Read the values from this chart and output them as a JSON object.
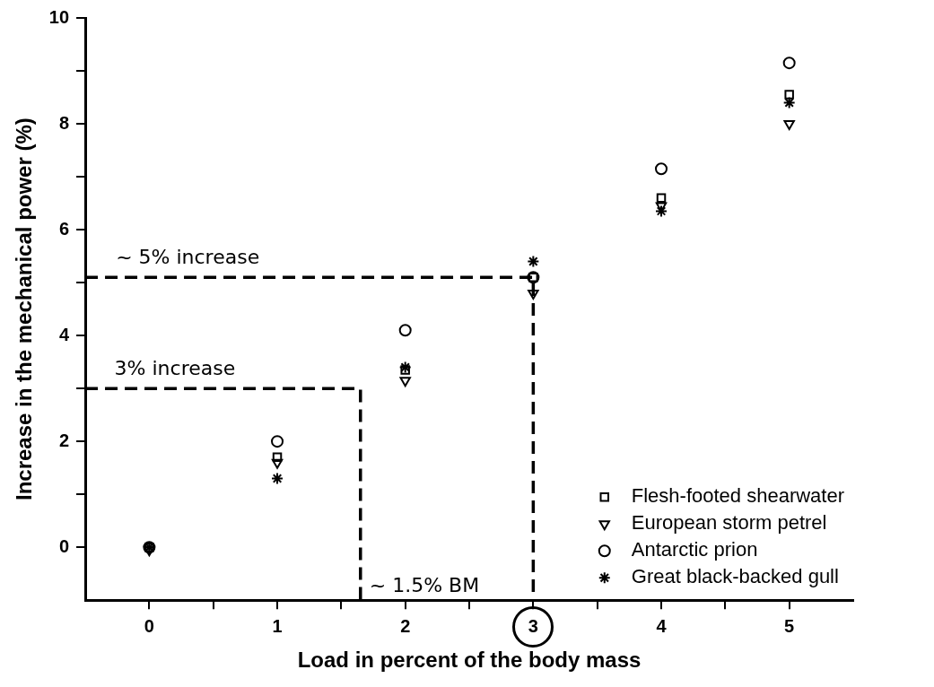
{
  "chart_data": {
    "type": "scatter",
    "xlabel": "Load in percent of the body mass",
    "ylabel": "Increase in the mechanical power (%)",
    "x": [
      0,
      1,
      2,
      3,
      4,
      5
    ],
    "xlim": [
      -0.5,
      5.5
    ],
    "xticks": [
      0,
      {
        "value": 0.5,
        "label": null
      },
      1,
      {
        "value": 1.5,
        "label": null
      },
      2,
      {
        "value": 2.5,
        "label": null
      },
      3,
      {
        "value": 3.5,
        "label": null
      },
      4,
      {
        "value": 4.5,
        "label": null
      },
      5
    ],
    "ylim": [
      -1,
      10
    ],
    "yticks": [
      0,
      {
        "value": 1,
        "label": null
      },
      2,
      {
        "value": 3,
        "label": null
      },
      4,
      {
        "value": 5,
        "label": null
      },
      6,
      {
        "value": 7,
        "label": null
      },
      8,
      {
        "value": 9,
        "label": null
      },
      10
    ],
    "grid": false,
    "legend": "bottom right",
    "series": [
      {
        "name": "Flesh-footed shearwater",
        "color": "#000000",
        "marker": "square",
        "values": [
          0,
          1.7,
          3.35,
          5.1,
          6.6,
          8.55
        ]
      },
      {
        "name": "European storm petrel",
        "color": "#000000",
        "marker": "triangle",
        "values": [
          -0.05,
          1.6,
          3.15,
          4.8,
          6.45,
          8.0
        ]
      },
      {
        "name": "Antarctic prion",
        "color": "#000000",
        "marker": "circle",
        "values": [
          0,
          2.0,
          4.1,
          5.1,
          7.15,
          9.15
        ]
      },
      {
        "name": "Great black-backed gull",
        "color": "#000000",
        "marker": "cross",
        "values": [
          0,
          1.3,
          3.4,
          5.4,
          6.35,
          8.4
        ]
      },
      {
        "type": "line",
        "color": "#000000",
        "marker": "none",
        "line_style": "dashed",
        "x": [
          -0.5,
          3,
          3
        ],
        "values": [
          5.1,
          5.1,
          -1
        ]
      },
      {
        "type": "line",
        "color": "#000000",
        "marker": "none",
        "line_style": "dashed",
        "x": [
          -0.5,
          1.65,
          1.65
        ],
        "values": [
          3,
          3,
          -1
        ]
      }
    ],
    "annotations": [
      {
        "text": "~ 5% increase",
        "x": 0.3,
        "y": 5.1
      },
      {
        "text": "3% increase",
        "x": 0.2,
        "y": 3
      },
      "~ 1.5% BM"
    ]
  }
}
